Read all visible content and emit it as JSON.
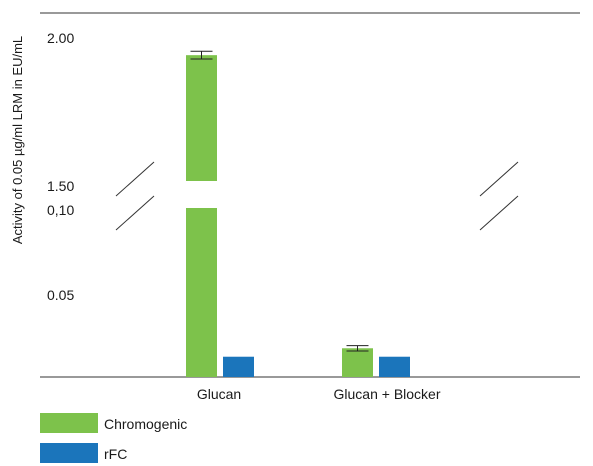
{
  "chart_data": {
    "type": "bar",
    "ylabel": "Activity of 0.05 µg/ml LRM in EU/mL",
    "y_axis_break": true,
    "y_ticks_lower": [
      "0.05",
      "0,10"
    ],
    "y_ticks_upper": [
      "1.50",
      "2.00"
    ],
    "ylim_lower": [
      0,
      0.1
    ],
    "ylim_upper": [
      1.5,
      2.0
    ],
    "categories": [
      "Glucan",
      "Glucan + Blocker"
    ],
    "series": [
      {
        "name": "Chromogenic",
        "color": "#7dc24b",
        "values": [
          1.94,
          0.017
        ],
        "error": [
          0.01,
          0.001
        ]
      },
      {
        "name": "rFC",
        "color": "#1b75bb",
        "values": [
          0.012,
          0.012
        ]
      }
    ],
    "grid": false,
    "legend_position": "bottom-left"
  }
}
